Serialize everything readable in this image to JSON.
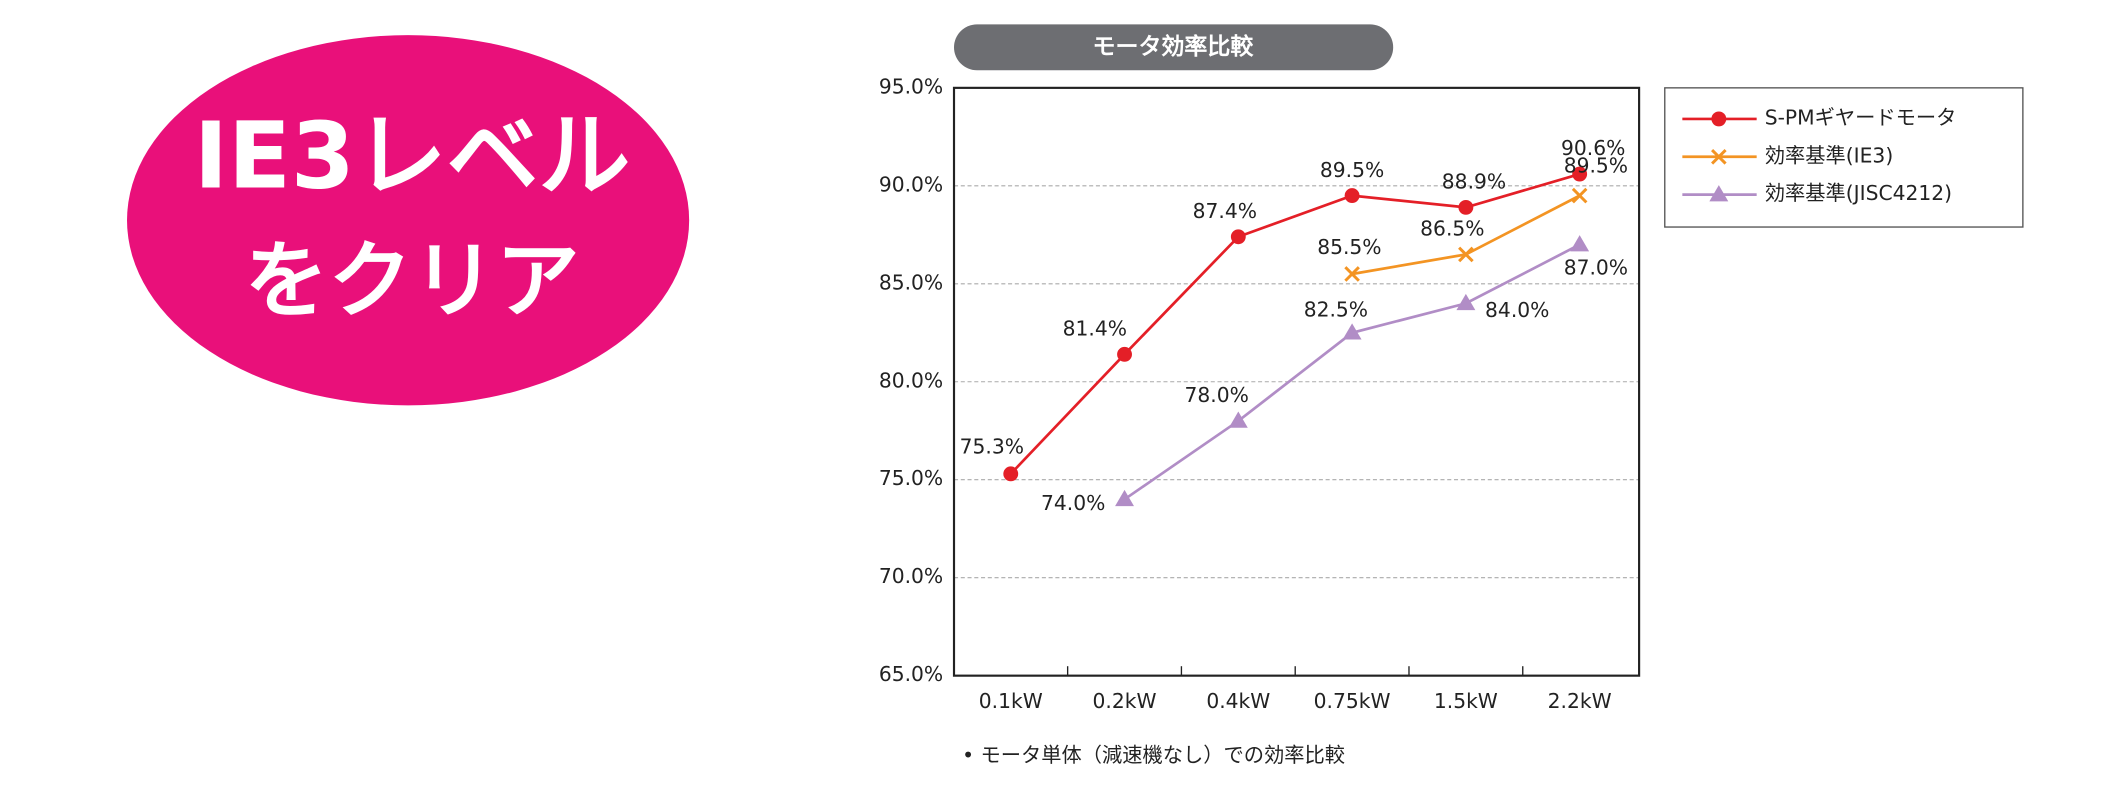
{
  "badge": {
    "line1": "IE3レベル",
    "line2": "をクリア"
  },
  "chart_data": {
    "type": "line",
    "title": "モータ効率比較",
    "categories": [
      "0.1kW",
      "0.2kW",
      "0.4kW",
      "0.75kW",
      "1.5kW",
      "2.2kW"
    ],
    "series": [
      {
        "name": "S-PMギヤードモータ",
        "color": "#e41f27",
        "values": [
          75.3,
          81.4,
          87.4,
          89.5,
          88.9,
          90.6
        ],
        "value_labels": [
          "75.3%",
          "81.4%",
          "87.4%",
          "89.5%",
          "88.9%",
          "90.6%"
        ]
      },
      {
        "name": "効率基準(IE3)",
        "color": "#f39423",
        "values": [
          null,
          null,
          null,
          85.5,
          86.5,
          89.5
        ],
        "value_labels": [
          null,
          null,
          null,
          "85.5%",
          "86.5%",
          "89.5%"
        ]
      },
      {
        "name": "効率基準(JISC4212)",
        "color": "#b18dc6",
        "values": [
          null,
          74.0,
          78.0,
          82.5,
          84.0,
          87.0
        ],
        "value_labels": [
          null,
          "74.0%",
          "78.0%",
          "82.5%",
          "84.0%",
          "87.0%"
        ]
      }
    ],
    "ylim": [
      65,
      95
    ],
    "yticks": [
      {
        "value": 65,
        "label": "65.0%"
      },
      {
        "value": 70,
        "label": "70.0%"
      },
      {
        "value": 75,
        "label": "75.0%"
      },
      {
        "value": 80,
        "label": "80.0%"
      },
      {
        "value": 85,
        "label": "85.0%"
      },
      {
        "value": 90,
        "label": "90.0%"
      },
      {
        "value": 95,
        "label": "95.0%"
      }
    ],
    "grid": true,
    "legend": "outside right"
  },
  "note": "• モータ単体（減速機なし）での効率比較"
}
